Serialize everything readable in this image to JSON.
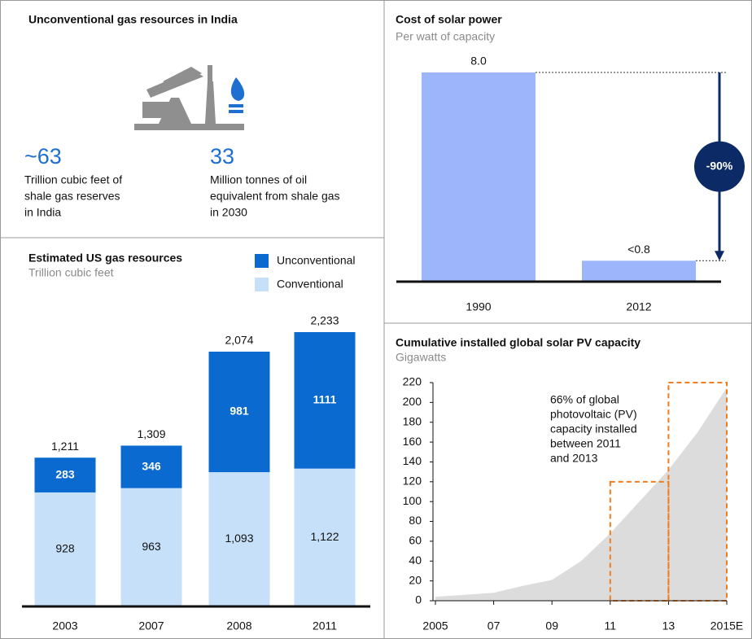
{
  "india_panel": {
    "title": "Unconventional gas resources in India",
    "stats": [
      {
        "value": "~63",
        "lines": [
          "Trillion cubic feet of",
          "shale gas reserves",
          "in India"
        ]
      },
      {
        "value": "33",
        "lines": [
          "Million tonnes of oil",
          "equivalent from shale gas",
          "in 2030"
        ]
      }
    ]
  },
  "chart_data": [
    {
      "type": "stacked-bar",
      "title": "Estimated US gas resources",
      "subtitle": "Trillion cubic feet",
      "categories": [
        "2003",
        "2007",
        "2008",
        "2011"
      ],
      "series": [
        {
          "name": "Unconventional",
          "color": "#0a6ad0",
          "values": [
            283,
            346,
            981,
            1111
          ]
        },
        {
          "name": "Conventional",
          "color": "#c6e0f9",
          "values": [
            928,
            963,
            1093,
            1122
          ],
          "value_labels": [
            "928",
            "963",
            "1,093",
            "1,122"
          ]
        }
      ],
      "totals": [
        1211,
        1309,
        2074,
        2233
      ],
      "total_labels": [
        "1,211",
        "1,309",
        "2,074",
        "2,233"
      ]
    },
    {
      "type": "bar",
      "title": "Cost of solar power",
      "subtitle": "Per watt of capacity",
      "categories": [
        "1990",
        "2012"
      ],
      "values": [
        8.0,
        0.8
      ],
      "value_labels": [
        "8.0",
        "<0.8"
      ],
      "color": "#9db5fb",
      "annotation": "-90%"
    },
    {
      "type": "area",
      "title": "Cumulative installed global solar PV capacity",
      "subtitle": "Gigawatts",
      "x": [
        2005,
        2006,
        2007,
        2008,
        2009,
        2010,
        2011,
        2012,
        2013,
        2014,
        2015
      ],
      "values": [
        4,
        6,
        8,
        15,
        21,
        40,
        68,
        100,
        132,
        170,
        215
      ],
      "color": "#dcdcdc",
      "xlim": [
        2005,
        2015
      ],
      "xticks": [
        {
          "value": 2005,
          "label": "2005"
        },
        {
          "value": 2007,
          "label": "07"
        },
        {
          "value": 2009,
          "label": "09"
        },
        {
          "value": 2011,
          "label": "11"
        },
        {
          "value": 2013,
          "label": "13"
        },
        {
          "value": 2015,
          "label": "2015E"
        }
      ],
      "ylim": [
        0,
        220
      ],
      "yticks": [
        0,
        20,
        40,
        60,
        80,
        100,
        120,
        140,
        160,
        180,
        200,
        220
      ],
      "annotation": [
        "66% of global",
        "photovoltaic (PV)",
        "capacity installed",
        "between 2011",
        "and 2013"
      ],
      "highlight_boxes": [
        {
          "xlim": [
            2011,
            2013
          ],
          "top": 120
        },
        {
          "xlim": [
            2013,
            2015
          ],
          "top": 220
        }
      ],
      "highlight_color": "#f07d1f"
    }
  ]
}
